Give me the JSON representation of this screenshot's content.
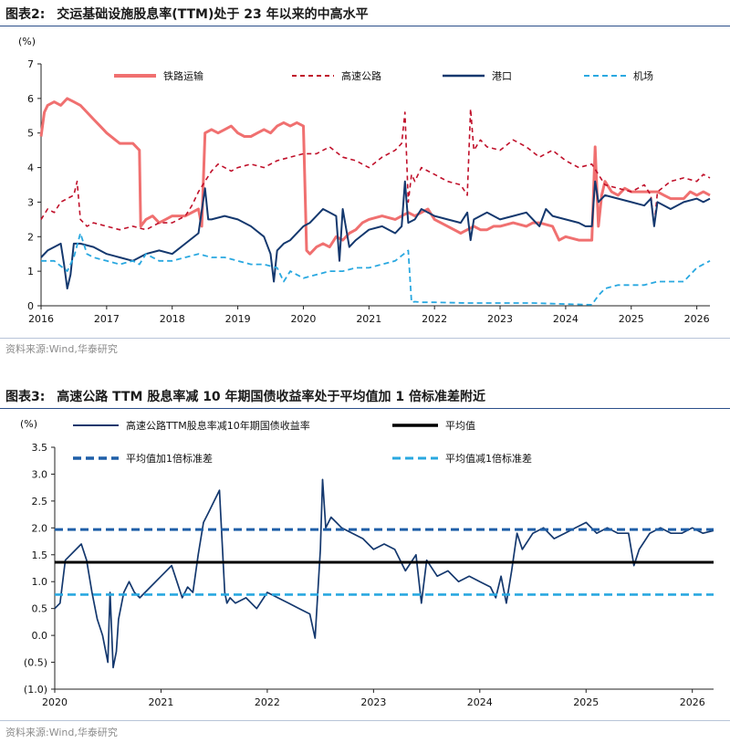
{
  "figure1": {
    "label": "图表2:",
    "title": "交运基础设施股息率(TTM)处于 23 年以来的中高水平",
    "source": "资料来源:Wind,华泰研究"
  },
  "figure2": {
    "label": "图表3:",
    "title": "高速公路 TTM 股息率减 10 年期国债收益率处于平均值加 1 倍标准差附近",
    "source": "资料来源:Wind,华泰研究"
  },
  "chart_data": [
    {
      "type": "line",
      "unit_label": "(%)",
      "x_range": [
        2016.0,
        2026.2
      ],
      "x_ticks": [
        "2016",
        "2017",
        "2018",
        "2019",
        "2020",
        "2021",
        "2022",
        "2023",
        "2024",
        "2025",
        "2026"
      ],
      "y_ticks": [
        "0",
        "1",
        "2",
        "3",
        "4",
        "5",
        "6",
        "7"
      ],
      "ylim": [
        0,
        7
      ],
      "legend_placement": "top",
      "grid": false,
      "series": [
        {
          "name": "铁路运输",
          "color": "#f07070",
          "style": "solid",
          "x": [
            2016.0,
            2016.05,
            2016.1,
            2016.2,
            2016.3,
            2016.4,
            2016.5,
            2016.6,
            2016.7,
            2016.8,
            2016.9,
            2017.0,
            2017.2,
            2017.4,
            2017.5,
            2017.52,
            2017.6,
            2017.7,
            2017.8,
            2017.9,
            2018.0,
            2018.2,
            2018.4,
            2018.45,
            2018.5,
            2018.6,
            2018.7,
            2018.8,
            2018.9,
            2019.0,
            2019.1,
            2019.2,
            2019.3,
            2019.4,
            2019.5,
            2019.6,
            2019.7,
            2019.8,
            2019.9,
            2020.0,
            2020.05,
            2020.1,
            2020.2,
            2020.3,
            2020.4,
            2020.5,
            2020.6,
            2020.7,
            2020.8,
            2020.9,
            2021.0,
            2021.2,
            2021.4,
            2021.6,
            2021.7,
            2021.8,
            2021.9,
            2022.0,
            2022.2,
            2022.4,
            2022.6,
            2022.7,
            2022.8,
            2022.9,
            2023.0,
            2023.2,
            2023.4,
            2023.5,
            2023.6,
            2023.8,
            2023.9,
            2024.0,
            2024.2,
            2024.4,
            2024.45,
            2024.5,
            2024.55,
            2024.6,
            2024.7,
            2024.8,
            2024.9,
            2025.0,
            2025.2,
            2025.4,
            2025.5,
            2025.6,
            2025.8,
            2025.9,
            2026.0,
            2026.1,
            2026.2
          ],
          "y": [
            4.9,
            5.6,
            5.8,
            5.9,
            5.8,
            6.0,
            5.9,
            5.8,
            5.6,
            5.4,
            5.2,
            5.0,
            4.7,
            4.7,
            4.5,
            2.3,
            2.5,
            2.6,
            2.4,
            2.5,
            2.6,
            2.6,
            2.8,
            2.3,
            5.0,
            5.1,
            5.0,
            5.1,
            5.2,
            5.0,
            4.9,
            4.9,
            5.0,
            5.1,
            5.0,
            5.2,
            5.3,
            5.2,
            5.3,
            5.2,
            1.6,
            1.5,
            1.7,
            1.8,
            1.7,
            2.0,
            1.9,
            2.1,
            2.2,
            2.4,
            2.5,
            2.6,
            2.5,
            2.7,
            2.6,
            2.7,
            2.8,
            2.5,
            2.3,
            2.1,
            2.3,
            2.2,
            2.2,
            2.3,
            2.3,
            2.4,
            2.3,
            2.4,
            2.4,
            2.3,
            1.9,
            2.0,
            1.9,
            1.9,
            4.6,
            2.3,
            3.2,
            3.6,
            3.3,
            3.2,
            3.4,
            3.3,
            3.3,
            3.3,
            3.2,
            3.1,
            3.1,
            3.3,
            3.2,
            3.3,
            3.2
          ]
        },
        {
          "name": "高速公路",
          "color": "#c0102a",
          "style": "dashed",
          "x": [
            2016.0,
            2016.1,
            2016.2,
            2016.3,
            2016.4,
            2016.5,
            2016.55,
            2016.6,
            2016.7,
            2016.8,
            2017.0,
            2017.2,
            2017.4,
            2017.6,
            2017.8,
            2018.0,
            2018.2,
            2018.3,
            2018.4,
            2018.5,
            2018.6,
            2018.7,
            2018.8,
            2018.9,
            2019.0,
            2019.2,
            2019.4,
            2019.6,
            2019.8,
            2020.0,
            2020.2,
            2020.4,
            2020.6,
            2020.8,
            2021.0,
            2021.2,
            2021.4,
            2021.5,
            2021.55,
            2021.6,
            2021.65,
            2021.7,
            2021.8,
            2022.0,
            2022.2,
            2022.4,
            2022.5,
            2022.55,
            2022.6,
            2022.7,
            2022.8,
            2023.0,
            2023.2,
            2023.4,
            2023.6,
            2023.8,
            2024.0,
            2024.2,
            2024.4,
            2024.5,
            2024.6,
            2024.8,
            2025.0,
            2025.2,
            2025.3,
            2025.35,
            2025.4,
            2025.6,
            2025.8,
            2026.0,
            2026.1,
            2026.2
          ],
          "y": [
            2.5,
            2.8,
            2.7,
            3.0,
            3.1,
            3.2,
            3.6,
            2.5,
            2.3,
            2.4,
            2.3,
            2.2,
            2.3,
            2.2,
            2.4,
            2.4,
            2.6,
            2.9,
            3.3,
            3.6,
            3.9,
            4.1,
            4.0,
            3.9,
            4.0,
            4.1,
            4.0,
            4.2,
            4.3,
            4.4,
            4.4,
            4.6,
            4.3,
            4.2,
            4.0,
            4.3,
            4.5,
            4.7,
            5.6,
            3.0,
            3.8,
            3.6,
            4.0,
            3.8,
            3.6,
            3.5,
            3.2,
            5.7,
            4.5,
            4.8,
            4.6,
            4.5,
            4.8,
            4.6,
            4.3,
            4.5,
            4.2,
            4.0,
            4.1,
            3.8,
            3.5,
            3.4,
            3.3,
            3.5,
            3.2,
            2.3,
            3.3,
            3.6,
            3.7,
            3.6,
            3.8,
            3.7
          ]
        },
        {
          "name": "港口",
          "color": "#14386e",
          "style": "solid",
          "x": [
            2016.0,
            2016.1,
            2016.2,
            2016.3,
            2016.35,
            2016.4,
            2016.45,
            2016.5,
            2016.6,
            2016.8,
            2017.0,
            2017.2,
            2017.4,
            2017.6,
            2017.8,
            2018.0,
            2018.2,
            2018.4,
            2018.5,
            2018.55,
            2018.6,
            2018.8,
            2019.0,
            2019.2,
            2019.4,
            2019.5,
            2019.55,
            2019.6,
            2019.7,
            2019.8,
            2020.0,
            2020.1,
            2020.2,
            2020.3,
            2020.4,
            2020.5,
            2020.55,
            2020.6,
            2020.7,
            2020.8,
            2021.0,
            2021.2,
            2021.4,
            2021.5,
            2021.55,
            2021.6,
            2021.7,
            2021.8,
            2022.0,
            2022.2,
            2022.4,
            2022.5,
            2022.55,
            2022.6,
            2022.8,
            2023.0,
            2023.2,
            2023.4,
            2023.5,
            2023.6,
            2023.7,
            2023.8,
            2024.0,
            2024.2,
            2024.3,
            2024.4,
            2024.45,
            2024.5,
            2024.6,
            2024.8,
            2025.0,
            2025.2,
            2025.3,
            2025.35,
            2025.4,
            2025.6,
            2025.8,
            2026.0,
            2026.1,
            2026.2
          ],
          "y": [
            1.4,
            1.6,
            1.7,
            1.8,
            1.2,
            0.5,
            0.9,
            1.8,
            1.8,
            1.7,
            1.5,
            1.4,
            1.3,
            1.5,
            1.6,
            1.5,
            1.8,
            2.1,
            3.4,
            2.5,
            2.5,
            2.6,
            2.5,
            2.3,
            2.0,
            1.5,
            0.7,
            1.6,
            1.8,
            1.9,
            2.3,
            2.4,
            2.6,
            2.8,
            2.7,
            2.6,
            1.3,
            2.8,
            1.7,
            1.9,
            2.2,
            2.3,
            2.1,
            2.3,
            3.6,
            2.4,
            2.5,
            2.8,
            2.6,
            2.5,
            2.4,
            2.7,
            1.9,
            2.5,
            2.7,
            2.5,
            2.6,
            2.7,
            2.5,
            2.3,
            2.8,
            2.6,
            2.5,
            2.4,
            2.3,
            2.3,
            3.6,
            3.0,
            3.2,
            3.1,
            3.0,
            2.9,
            3.1,
            2.3,
            3.0,
            2.8,
            3.0,
            3.1,
            3.0,
            3.1
          ]
        },
        {
          "name": "机场",
          "color": "#29a8e0",
          "style": "dashed",
          "x": [
            2016.0,
            2016.2,
            2016.4,
            2016.5,
            2016.6,
            2016.7,
            2016.8,
            2017.0,
            2017.2,
            2017.4,
            2017.5,
            2017.6,
            2017.8,
            2018.0,
            2018.2,
            2018.4,
            2018.6,
            2018.8,
            2019.0,
            2019.2,
            2019.4,
            2019.6,
            2019.7,
            2019.8,
            2020.0,
            2020.2,
            2020.4,
            2020.6,
            2020.8,
            2021.0,
            2021.2,
            2021.4,
            2021.6,
            2021.65,
            2021.7,
            2021.8,
            2022.0,
            2022.5,
            2023.0,
            2023.5,
            2024.0,
            2024.4,
            2024.5,
            2024.6,
            2024.8,
            2025.0,
            2025.2,
            2025.4,
            2025.6,
            2025.8,
            2026.0,
            2026.2
          ],
          "y": [
            1.3,
            1.3,
            1.0,
            1.4,
            2.1,
            1.5,
            1.4,
            1.3,
            1.2,
            1.3,
            1.2,
            1.5,
            1.3,
            1.3,
            1.4,
            1.5,
            1.4,
            1.4,
            1.3,
            1.2,
            1.2,
            1.1,
            0.7,
            1.0,
            0.8,
            0.9,
            1.0,
            1.0,
            1.1,
            1.1,
            1.2,
            1.3,
            1.6,
            0.1,
            0.12,
            0.1,
            0.1,
            0.08,
            0.08,
            0.08,
            0.05,
            0.03,
            0.3,
            0.5,
            0.6,
            0.6,
            0.6,
            0.7,
            0.7,
            0.7,
            1.1,
            1.3
          ]
        }
      ]
    },
    {
      "type": "line",
      "unit_label": "(%)",
      "x_range": [
        2020.0,
        2026.2
      ],
      "x_ticks": [
        "2020",
        "2021",
        "2022",
        "2023",
        "2024",
        "2025",
        "2026"
      ],
      "y_ticks": [
        "(1.0)",
        "(0.5)",
        "0.0",
        "0.5",
        "1.0",
        "1.5",
        "2.0",
        "2.5",
        "3.0",
        "3.5"
      ],
      "ylim": [
        -1.0,
        3.5
      ],
      "legend_placement": "top",
      "grid": false,
      "series": [
        {
          "name": "高速公路TTM股息率减10年期国债收益率",
          "color": "#14386e",
          "style": "solid",
          "x": [
            2020.0,
            2020.05,
            2020.1,
            2020.2,
            2020.25,
            2020.3,
            2020.35,
            2020.4,
            2020.45,
            2020.5,
            2020.52,
            2020.55,
            2020.58,
            2020.6,
            2020.65,
            2020.7,
            2020.75,
            2020.8,
            2020.9,
            2021.0,
            2021.1,
            2021.2,
            2021.25,
            2021.3,
            2021.35,
            2021.4,
            2021.45,
            2021.5,
            2021.55,
            2021.6,
            2021.62,
            2021.65,
            2021.7,
            2021.8,
            2021.9,
            2022.0,
            2022.1,
            2022.2,
            2022.3,
            2022.4,
            2022.45,
            2022.5,
            2022.52,
            2022.55,
            2022.6,
            2022.65,
            2022.7,
            2022.8,
            2022.9,
            2023.0,
            2023.1,
            2023.2,
            2023.3,
            2023.4,
            2023.45,
            2023.5,
            2023.6,
            2023.7,
            2023.8,
            2023.9,
            2024.0,
            2024.1,
            2024.15,
            2024.2,
            2024.25,
            2024.3,
            2024.35,
            2024.4,
            2024.5,
            2024.6,
            2024.7,
            2024.8,
            2024.9,
            2025.0,
            2025.1,
            2025.2,
            2025.3,
            2025.4,
            2025.45,
            2025.5,
            2025.6,
            2025.7,
            2025.8,
            2025.9,
            2026.0,
            2026.1,
            2026.2
          ],
          "y": [
            0.5,
            0.6,
            1.4,
            1.6,
            1.7,
            1.4,
            0.8,
            0.3,
            0.0,
            -0.5,
            0.8,
            -0.6,
            -0.3,
            0.3,
            0.8,
            1.0,
            0.8,
            0.7,
            0.9,
            1.1,
            1.3,
            0.7,
            0.9,
            0.8,
            1.5,
            2.1,
            2.3,
            2.5,
            2.7,
            0.8,
            0.6,
            0.7,
            0.6,
            0.7,
            0.5,
            0.8,
            0.7,
            0.6,
            0.5,
            0.4,
            -0.05,
            1.6,
            2.9,
            2.0,
            2.2,
            2.1,
            2.0,
            1.9,
            1.8,
            1.6,
            1.7,
            1.6,
            1.2,
            1.5,
            0.6,
            1.4,
            1.1,
            1.2,
            1.0,
            1.1,
            1.0,
            0.9,
            0.7,
            1.1,
            0.6,
            1.2,
            1.9,
            1.6,
            1.9,
            2.0,
            1.8,
            1.9,
            2.0,
            2.1,
            1.9,
            2.0,
            1.9,
            1.9,
            1.3,
            1.6,
            1.9,
            2.0,
            1.9,
            1.9,
            2.0,
            1.9,
            1.95
          ]
        },
        {
          "name": "平均值",
          "color": "#000000",
          "style": "solid",
          "x": [
            2020.0,
            2026.2
          ],
          "y": [
            1.36,
            1.36
          ]
        },
        {
          "name": "平均值加1倍标准差",
          "color": "#1f5fa8",
          "style": "dashed",
          "x": [
            2020.0,
            2026.2
          ],
          "y": [
            1.97,
            1.97
          ]
        },
        {
          "name": "平均值减1倍标准差",
          "color": "#29a8e0",
          "style": "dashed",
          "x": [
            2020.0,
            2026.2
          ],
          "y": [
            0.76,
            0.76
          ]
        }
      ]
    }
  ]
}
